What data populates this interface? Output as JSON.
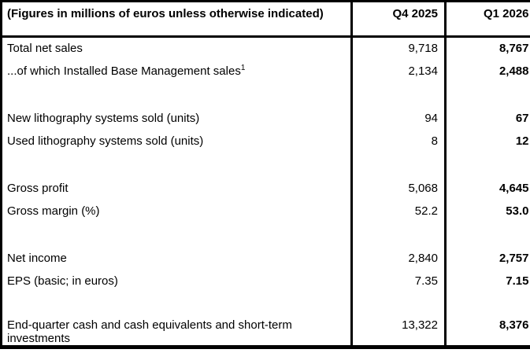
{
  "table": {
    "header": {
      "label": "(Figures in millions of euros unless otherwise indicated)",
      "col_q4": "Q4 2025",
      "col_q1": "Q1 2026"
    },
    "rows": [
      {
        "label": "Total net sales",
        "q4": "9,718",
        "q1": "8,767"
      },
      {
        "label": "...of which Installed Base Management sales",
        "label_sup": "1",
        "q4": "2,134",
        "q1": "2,488"
      },
      {
        "label": "New lithography systems sold (units)",
        "q4": "94",
        "q1": "67"
      },
      {
        "label": "Used lithography systems sold (units)",
        "q4": "8",
        "q1": "12"
      },
      {
        "label": "Gross profit",
        "q4": "5,068",
        "q1": "4,645"
      },
      {
        "label": "Gross margin (%)",
        "q4": "52.2",
        "q1": "53.0"
      },
      {
        "label": "Net income",
        "q4": "2,840",
        "q1": "2,757"
      },
      {
        "label": "EPS (basic; in euros)",
        "q4": "7.35",
        "q1": "7.15"
      },
      {
        "label": "End-quarter cash and cash equivalents and short-term investments",
        "q4": "13,322",
        "q1": "8,376"
      }
    ],
    "colors": {
      "border": "#000000",
      "text": "#000000",
      "background": "#ffffff"
    }
  }
}
